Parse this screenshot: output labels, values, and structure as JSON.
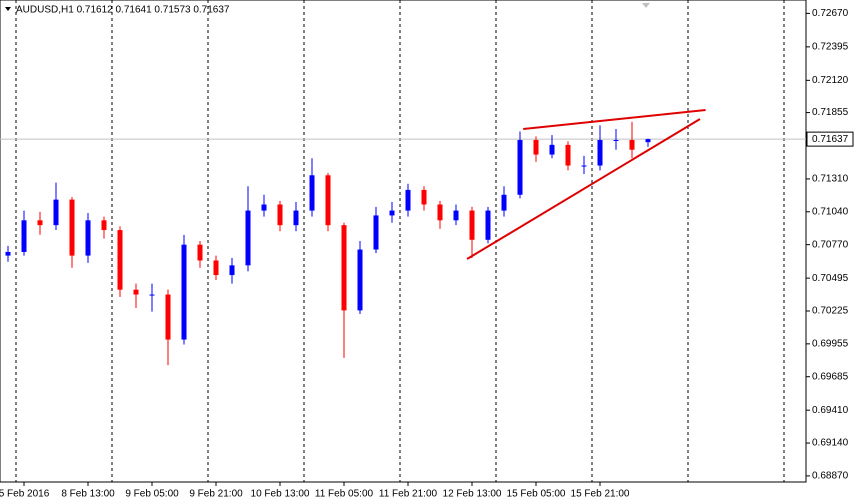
{
  "chart_data": {
    "type": "candlestick",
    "title": "AUDUSD,H1  0.71612 0.71641 0.71573 0.71637",
    "categories": [
      null,
      "5 Feb 2016",
      null,
      null,
      null,
      "8 Feb 13:00",
      null,
      null,
      null,
      "9 Feb 05:00",
      null,
      null,
      null,
      "9 Feb 21:00",
      null,
      null,
      null,
      "10 Feb 13:00",
      null,
      null,
      null,
      "11 Feb 05:00",
      null,
      null,
      null,
      "11 Feb 21:00",
      null,
      null,
      null,
      "12 Feb 13:00",
      null,
      null,
      null,
      "15 Feb 05:00",
      null,
      null,
      null,
      "15 Feb 21:00",
      null,
      null,
      null
    ],
    "open": [
      0.7068,
      0.7071,
      0.7097,
      0.7093,
      0.7114,
      0.7068,
      0.7097,
      0.7089,
      0.704,
      0.7036,
      0.7036,
      0.6999,
      0.7077,
      0.7064,
      0.7052,
      0.706,
      0.7105,
      0.711,
      0.7093,
      0.7105,
      0.7134,
      0.7093,
      0.7023,
      0.7073,
      0.7101,
      0.7105,
      0.7122,
      0.711,
      0.7097,
      0.7105,
      0.7081,
      0.7105,
      0.7118,
      0.7163,
      0.7151,
      0.7159,
      0.7142,
      0.7142,
      0.7163,
      0.7163,
      0.71612
    ],
    "high": [
      0.7076,
      0.7105,
      0.7104,
      0.7128,
      0.7116,
      0.7103,
      0.71,
      0.7092,
      0.7045,
      0.7045,
      0.704,
      0.7085,
      0.708,
      0.7068,
      0.7066,
      0.7125,
      0.7118,
      0.7113,
      0.7112,
      0.7148,
      0.7136,
      0.7095,
      0.708,
      0.7108,
      0.7112,
      0.7127,
      0.7125,
      0.7113,
      0.711,
      0.7108,
      0.7108,
      0.7125,
      0.717,
      0.7166,
      0.7167,
      0.7162,
      0.715,
      0.7175,
      0.7172,
      0.7178,
      0.71641
    ],
    "low": [
      0.7063,
      0.7068,
      0.7085,
      0.7089,
      0.7058,
      0.7062,
      0.7082,
      0.7034,
      0.7025,
      0.7022,
      0.6978,
      0.6995,
      0.7058,
      0.7048,
      0.7045,
      0.7055,
      0.71,
      0.7088,
      0.7088,
      0.71,
      0.7088,
      0.6984,
      0.702,
      0.707,
      0.7095,
      0.71,
      0.7105,
      0.709,
      0.7093,
      0.7066,
      0.7078,
      0.71,
      0.7115,
      0.7145,
      0.7148,
      0.7138,
      0.7135,
      0.7138,
      0.7155,
      0.7148,
      0.71573
    ],
    "close": [
      0.7071,
      0.7097,
      0.7093,
      0.7114,
      0.7068,
      0.7097,
      0.7089,
      0.704,
      0.7036,
      0.7036,
      0.6999,
      0.7077,
      0.7064,
      0.7052,
      0.706,
      0.7105,
      0.711,
      0.7093,
      0.7105,
      0.7134,
      0.7093,
      0.7023,
      0.7073,
      0.7101,
      0.7105,
      0.7122,
      0.711,
      0.7097,
      0.7105,
      0.7081,
      0.7105,
      0.7118,
      0.7163,
      0.7151,
      0.7159,
      0.7142,
      0.7142,
      0.7163,
      0.7163,
      0.7155,
      0.71637
    ],
    "up_color": "#0000ff",
    "down_color": "#ff0000",
    "current_price": 0.71637,
    "trendlines": [
      {
        "color": "#e00000",
        "x": [
          32.2,
          43.6
        ],
        "y": [
          0.7172,
          0.71876
        ]
      },
      {
        "color": "#e00000",
        "x": [
          28.69,
          43.25
        ],
        "y": [
          0.70652,
          0.71802
        ]
      }
    ],
    "ylim": [
      0.6882,
      0.7278
    ],
    "yticks": [
      {
        "value": 0.7267,
        "label": "0.72670"
      },
      {
        "value": 0.72395,
        "label": "0.72395"
      },
      {
        "value": 0.7212,
        "label": "0.72120"
      },
      {
        "value": 0.71855,
        "label": "0.71855"
      },
      {
        "value": 0.7131,
        "label": "0.71310"
      },
      {
        "value": 0.7104,
        "label": "0.71040"
      },
      {
        "value": 0.7077,
        "label": "0.70770"
      },
      {
        "value": 0.70495,
        "label": "0.70495"
      },
      {
        "value": 0.70225,
        "label": "0.70225"
      },
      {
        "value": 0.69955,
        "label": "0.69955"
      },
      {
        "value": 0.69685,
        "label": "0.69685"
      },
      {
        "value": 0.6941,
        "label": "0.69410"
      },
      {
        "value": 0.6914,
        "label": "0.69140"
      },
      {
        "value": 0.6887,
        "label": "0.68870"
      }
    ]
  }
}
